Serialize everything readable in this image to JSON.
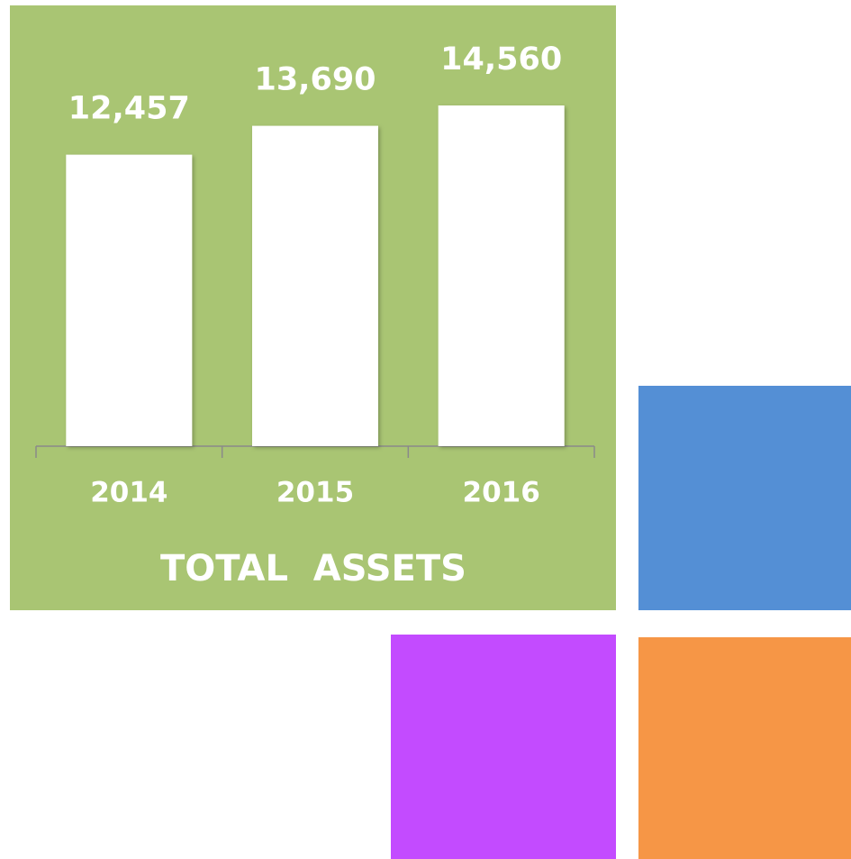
{
  "chart_data": {
    "type": "bar",
    "title": "TOTAL  ASSETS",
    "categories": [
      "2014",
      "2015",
      "2016"
    ],
    "values": [
      12457,
      13690,
      14560
    ],
    "value_labels": [
      "12,457",
      "13,690",
      "14,560"
    ],
    "color": "#ffffff",
    "background": "#a9c573"
  }
}
